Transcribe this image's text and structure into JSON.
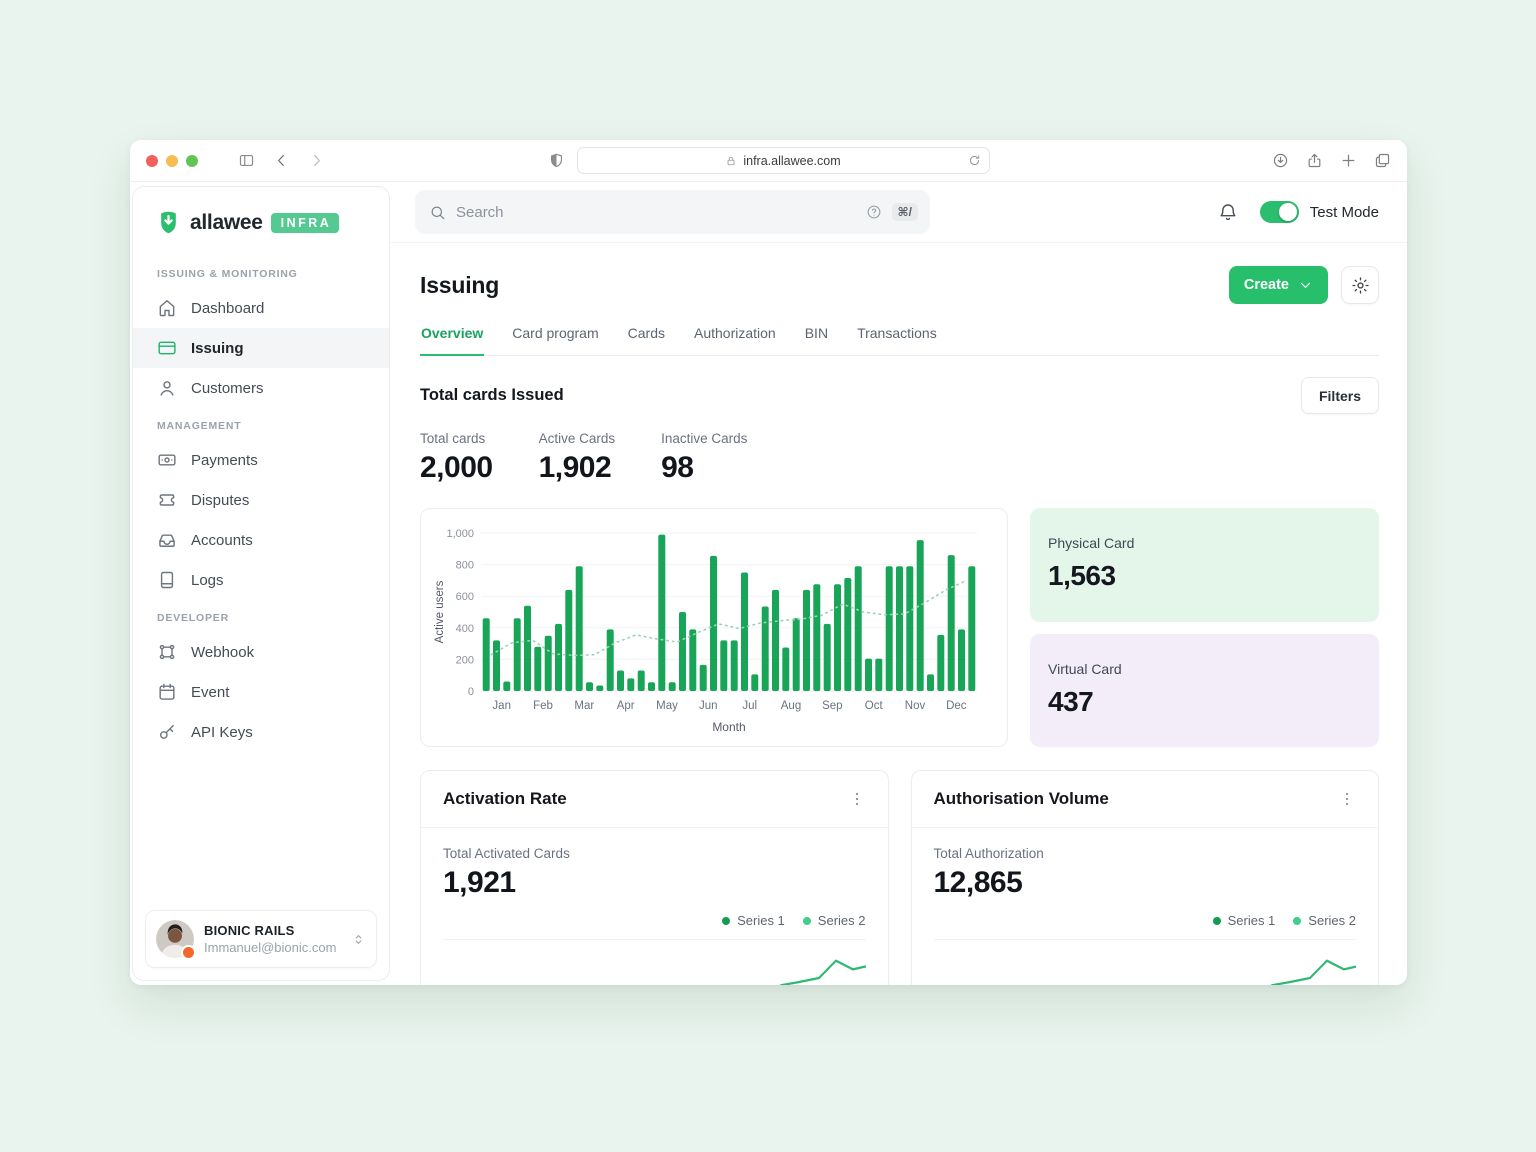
{
  "browser": {
    "url": "infra.allawee.com"
  },
  "header": {
    "search_placeholder": "Search",
    "shortcut": "⌘/",
    "test_mode_label": "Test Mode",
    "test_mode_on": true
  },
  "sidebar": {
    "logo_text": "allawee",
    "logo_badge": "INFRA",
    "sections": [
      {
        "label": "ISSUING & MONITORING",
        "items": [
          {
            "label": "Dashboard",
            "icon": "home-icon",
            "active": false
          },
          {
            "label": "Issuing",
            "icon": "card-icon",
            "active": true
          },
          {
            "label": "Customers",
            "icon": "user-icon",
            "active": false
          }
        ]
      },
      {
        "label": "MANAGEMENT",
        "items": [
          {
            "label": "Payments",
            "icon": "banknote-icon",
            "active": false
          },
          {
            "label": "Disputes",
            "icon": "ticket-icon",
            "active": false
          },
          {
            "label": "Accounts",
            "icon": "inbox-icon",
            "active": false
          },
          {
            "label": "Logs",
            "icon": "notebook-icon",
            "active": false
          }
        ]
      },
      {
        "label": "DEVELOPER",
        "items": [
          {
            "label": "Webhook",
            "icon": "webhook-icon",
            "active": false
          },
          {
            "label": "Event",
            "icon": "calendar-icon",
            "active": false
          },
          {
            "label": "API Keys",
            "icon": "key-icon",
            "active": false
          }
        ]
      }
    ],
    "user": {
      "name": "BIONIC RAILS",
      "email": "Immanuel@bionic.com"
    }
  },
  "page": {
    "title": "Issuing",
    "create_label": "Create",
    "tabs": [
      {
        "label": "Overview",
        "active": true
      },
      {
        "label": "Card program",
        "active": false
      },
      {
        "label": "Cards",
        "active": false
      },
      {
        "label": "Authorization",
        "active": false
      },
      {
        "label": "BIN",
        "active": false
      },
      {
        "label": "Transactions",
        "active": false
      }
    ],
    "section_title": "Total cards Issued",
    "filters_label": "Filters",
    "stats": [
      {
        "label": "Total cards",
        "value": "2,000"
      },
      {
        "label": "Active Cards",
        "value": "1,902"
      },
      {
        "label": "Inactive Cards",
        "value": "98"
      }
    ],
    "side_panels": [
      {
        "label": "Physical Card",
        "value": "1,563",
        "bg": "#e4f5ea"
      },
      {
        "label": "Virtual Card",
        "value": "437",
        "bg": "#f3edfa"
      }
    ],
    "cards": [
      {
        "title": "Activation Rate",
        "stat_label": "Total Activated Cards",
        "stat_value": "1,921",
        "legend": [
          "Series 1",
          "Series 2"
        ]
      },
      {
        "title": "Authorisation Volume",
        "stat_label": "Total Authorization",
        "stat_value": "12,865",
        "legend": [
          "Series 1",
          "Series 2"
        ]
      }
    ]
  },
  "colors": {
    "brand_green": "#27be6c",
    "bar_green": "#18a558",
    "trend_green": "#9ad3b3",
    "series1": "#169a53",
    "series2": "#42cd8a",
    "physical_bg": "#e4f5ea",
    "virtual_bg": "#f3edfa",
    "traffic": [
      "#f0615c",
      "#f6be50",
      "#5fc454"
    ]
  },
  "chart_data": [
    {
      "id": "active_users_by_month",
      "type": "bar",
      "title": "Total cards Issued",
      "xlabel": "Month",
      "ylabel": "Active users",
      "ylim": [
        0,
        1000
      ],
      "yticks": [
        0,
        200,
        400,
        600,
        800,
        1000
      ],
      "ytick_labels": [
        "0",
        "200",
        "400",
        "600",
        "800",
        "1,000"
      ],
      "categories": [
        "Jan",
        "Feb",
        "Mar",
        "Apr",
        "May",
        "Jun",
        "Jul",
        "Aug",
        "Sep",
        "Oct",
        "Nov",
        "Dec"
      ],
      "bars_per_month": 4,
      "values": [
        460,
        320,
        60,
        460,
        540,
        280,
        350,
        425,
        640,
        790,
        55,
        35,
        390,
        130,
        80,
        130,
        55,
        990,
        55,
        500,
        390,
        165,
        855,
        320,
        320,
        750,
        105,
        535,
        640,
        275,
        460,
        640,
        675,
        425,
        675,
        715,
        790,
        205,
        205,
        790,
        790,
        790,
        955,
        105,
        355,
        860,
        390,
        790
      ],
      "trend_line": {
        "style": "dotted",
        "values": [
          230,
          305,
          320,
          235,
          225,
          230,
          305,
          355,
          330,
          310,
          370,
          425,
          395,
          430,
          445,
          455,
          480,
          550,
          500,
          482,
          488,
          560,
          640,
          700
        ]
      },
      "grid": true,
      "legend_position": "none"
    },
    {
      "id": "activation_rate_sparkline",
      "type": "line",
      "series": [
        {
          "name": "Series 1",
          "points_pct": [
            [
              55,
              -40
            ],
            [
              68,
              -12
            ],
            [
              76,
              2
            ],
            [
              80,
              40
            ],
            [
              84,
              44
            ],
            [
              89,
              50
            ],
            [
              93,
              74
            ],
            [
              97,
              62
            ],
            [
              100,
              66
            ]
          ]
        }
      ],
      "legend": [
        "Series 1",
        "Series 2"
      ]
    },
    {
      "id": "authorisation_volume_sparkline",
      "type": "line",
      "series": [
        {
          "name": "Series 1",
          "points_pct": [
            [
              55,
              -40
            ],
            [
              68,
              -12
            ],
            [
              76,
              2
            ],
            [
              80,
              40
            ],
            [
              84,
              44
            ],
            [
              89,
              50
            ],
            [
              93,
              74
            ],
            [
              97,
              62
            ],
            [
              100,
              66
            ]
          ]
        }
      ],
      "legend": [
        "Series 1",
        "Series 2"
      ]
    }
  ]
}
